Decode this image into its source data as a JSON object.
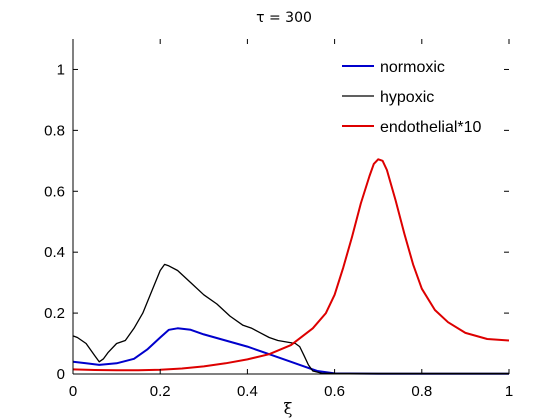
{
  "chart_data": {
    "type": "line",
    "title": "τ = 300",
    "xlabel": "ξ",
    "ylabel": "",
    "xlim": [
      0,
      1
    ],
    "ylim": [
      0,
      1.1
    ],
    "x_ticks": [
      0,
      0.2,
      0.4,
      0.6,
      0.8,
      1
    ],
    "x_tick_labels": [
      "0",
      "0.2",
      "0.4",
      "0.6",
      "0.8",
      "1"
    ],
    "y_ticks": [
      0,
      0.2,
      0.4,
      0.6,
      0.8,
      1
    ],
    "y_tick_labels": [
      "0",
      "0.2",
      "0.4",
      "0.6",
      "0.8",
      "1"
    ],
    "grid": false,
    "legend_position": "top-right",
    "series": [
      {
        "name": "normoxic",
        "color": "#0000cc",
        "x": [
          0,
          0.03,
          0.06,
          0.1,
          0.14,
          0.17,
          0.2,
          0.22,
          0.24,
          0.27,
          0.3,
          0.35,
          0.4,
          0.45,
          0.5,
          0.53,
          0.56,
          0.6,
          0.7,
          0.8,
          0.9,
          1.0
        ],
        "y": [
          0.04,
          0.035,
          0.03,
          0.035,
          0.05,
          0.08,
          0.12,
          0.145,
          0.15,
          0.145,
          0.13,
          0.11,
          0.09,
          0.065,
          0.04,
          0.025,
          0.01,
          0.002,
          0.001,
          0.001,
          0.001,
          0.001
        ]
      },
      {
        "name": "hypoxic",
        "color": "#000000",
        "x": [
          0,
          0.01,
          0.03,
          0.05,
          0.06,
          0.07,
          0.08,
          0.1,
          0.12,
          0.14,
          0.16,
          0.18,
          0.2,
          0.21,
          0.22,
          0.24,
          0.27,
          0.3,
          0.33,
          0.36,
          0.39,
          0.41,
          0.43,
          0.45,
          0.47,
          0.49,
          0.51,
          0.52,
          0.53,
          0.54,
          0.55,
          0.57,
          0.6,
          0.7,
          0.8,
          0.9,
          1.0
        ],
        "y": [
          0.125,
          0.12,
          0.1,
          0.06,
          0.04,
          0.05,
          0.07,
          0.1,
          0.11,
          0.15,
          0.2,
          0.27,
          0.34,
          0.36,
          0.355,
          0.34,
          0.3,
          0.26,
          0.23,
          0.19,
          0.16,
          0.15,
          0.135,
          0.12,
          0.11,
          0.105,
          0.1,
          0.09,
          0.06,
          0.03,
          0.01,
          0.003,
          0.002,
          0.002,
          0.002,
          0.002,
          0.002
        ]
      },
      {
        "name": "endothelial*10",
        "color": "#dd0000",
        "x": [
          0,
          0.05,
          0.1,
          0.15,
          0.2,
          0.25,
          0.3,
          0.35,
          0.4,
          0.45,
          0.5,
          0.55,
          0.58,
          0.6,
          0.62,
          0.64,
          0.66,
          0.68,
          0.69,
          0.7,
          0.71,
          0.72,
          0.74,
          0.76,
          0.78,
          0.8,
          0.83,
          0.86,
          0.9,
          0.95,
          1.0
        ],
        "y": [
          0.015,
          0.013,
          0.012,
          0.012,
          0.014,
          0.018,
          0.025,
          0.035,
          0.048,
          0.065,
          0.095,
          0.15,
          0.2,
          0.26,
          0.35,
          0.45,
          0.56,
          0.65,
          0.69,
          0.705,
          0.7,
          0.67,
          0.57,
          0.46,
          0.36,
          0.28,
          0.21,
          0.17,
          0.135,
          0.115,
          0.11
        ]
      }
    ]
  }
}
